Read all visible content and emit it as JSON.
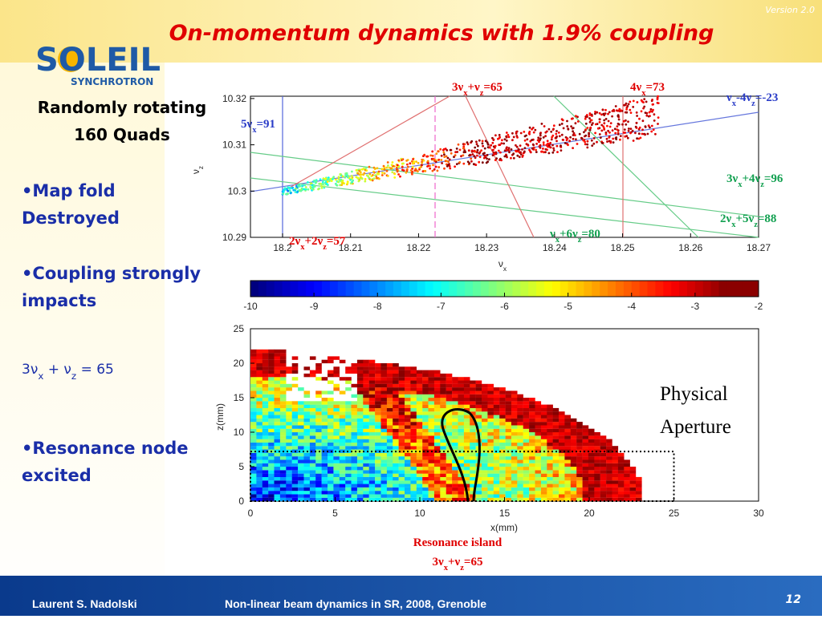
{
  "header": {
    "title": "On-momentum dynamics  with 1.9% coupling",
    "version": "Version 2.0",
    "logo": "SOLEIL",
    "logo_sub": "SYNCHROTRON"
  },
  "left": {
    "heading": [
      "Randomly rotating",
      "160 Quads"
    ],
    "bullets": [
      [
        "•Map fold",
        "Destroyed"
      ],
      [
        "•Coupling strongly",
        "impacts"
      ]
    ],
    "formula": [
      "3ν",
      "x",
      " + ν",
      "z",
      " = 65"
    ],
    "bullet_last": [
      "•Resonance node",
      " excited"
    ]
  },
  "freq_map": {
    "x_label": [
      "ν",
      "x"
    ],
    "y_label": [
      "ν",
      "z"
    ],
    "xticks": [
      18.2,
      18.21,
      18.22,
      18.23,
      18.24,
      18.25,
      18.26,
      18.27
    ],
    "yticks": [
      10.29,
      10.3,
      10.31,
      10.32
    ],
    "resonances": [
      {
        "label": [
          "3ν",
          "x",
          "+ν",
          "z",
          "=65"
        ],
        "color": "#e00000"
      },
      {
        "label": [
          "4ν",
          "x",
          "=73"
        ],
        "color": "#e00000"
      },
      {
        "label": [
          "ν",
          "x",
          "-4ν",
          "z",
          "=-23"
        ],
        "color": "#2a3cc8"
      },
      {
        "label": [
          "5ν",
          "x",
          "=91"
        ],
        "color": "#2a3cc8"
      },
      {
        "label": [
          "3ν",
          "x",
          "+4ν",
          "z",
          "=96"
        ],
        "color": "#12a050"
      },
      {
        "label": [
          "2ν",
          "x",
          "+5ν",
          "z",
          "=88"
        ],
        "color": "#12a050"
      },
      {
        "label": [
          "ν",
          "x",
          "+6ν",
          "z",
          "=80"
        ],
        "color": "#12a050"
      },
      {
        "label": [
          "2ν",
          "x",
          "+2ν",
          "z",
          "=57"
        ],
        "color": "#e00000"
      }
    ]
  },
  "colorbar": {
    "ticks": [
      -10,
      -9,
      -8,
      -7,
      -6,
      -5,
      -4,
      -3,
      -2
    ]
  },
  "diffusion_map": {
    "x_label": "x(mm)",
    "y_label": "z(mm)",
    "xticks": [
      0,
      5,
      10,
      15,
      20,
      25,
      30
    ],
    "yticks": [
      0,
      5,
      10,
      15,
      20,
      25
    ],
    "annotation": [
      "Physical",
      "Aperture"
    ],
    "island_title": "Resonance island",
    "island_label": [
      "3ν",
      "x",
      "+ν",
      "z",
      "=65"
    ]
  },
  "footer": {
    "author": "Laurent S. Nadolski",
    "talk": "Non-linear beam dynamics in SR,  2008, Grenoble",
    "page": "12"
  }
}
